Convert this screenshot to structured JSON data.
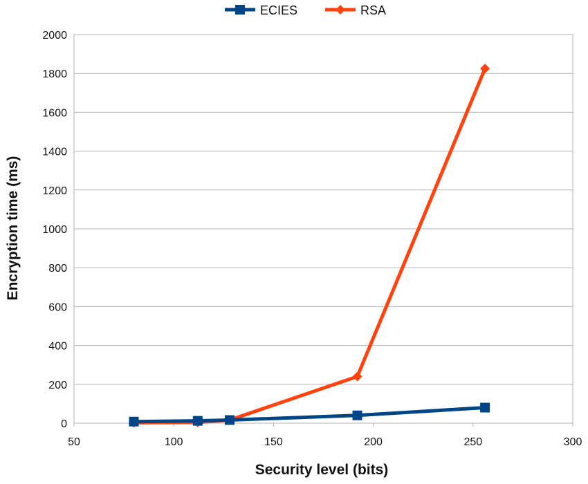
{
  "chart_data": {
    "type": "line",
    "title": "",
    "xlabel": "Security level (bits)",
    "ylabel": "Encryption time (ms)",
    "xlim": [
      50,
      300
    ],
    "ylim": [
      0,
      2000
    ],
    "x_ticks": [
      50,
      100,
      150,
      200,
      250,
      300
    ],
    "y_ticks": [
      0,
      200,
      400,
      600,
      800,
      1000,
      1200,
      1400,
      1600,
      1800,
      2000
    ],
    "grid": "horizontal",
    "legend_position": "top-center",
    "series": [
      {
        "name": "ECIES",
        "color": "#004586",
        "marker": "square",
        "x": [
          80,
          112,
          128,
          192,
          256
        ],
        "y": [
          8,
          12,
          16,
          40,
          80
        ]
      },
      {
        "name": "RSA",
        "color": "#ff420e",
        "marker": "diamond",
        "x": [
          80,
          112,
          128,
          192,
          256
        ],
        "y": [
          2,
          4,
          16,
          240,
          1825
        ]
      }
    ]
  }
}
